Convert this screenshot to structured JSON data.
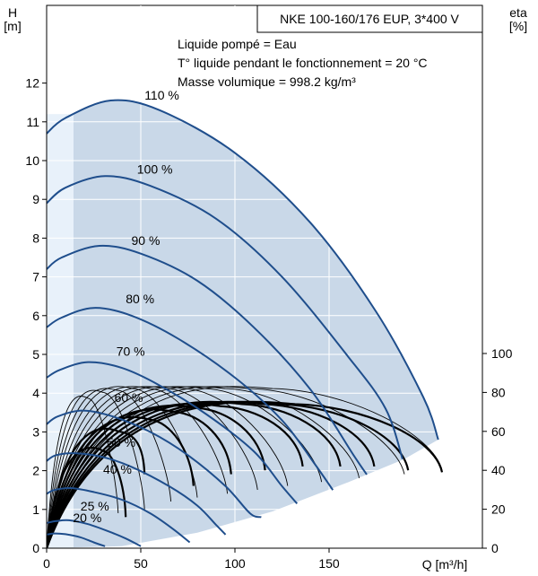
{
  "chart_data": {
    "type": "line",
    "title": "NKE 100-160/176 EUP, 3*400 V",
    "annotations": [
      "Liquide pompé = Eau",
      "T° liquide pendant le fonctionnement = 20 °C",
      "Masse volumique = 998.2 kg/m³"
    ],
    "left_axis": {
      "label_line1": "H",
      "label_line2": "[m]",
      "range": [
        0,
        13
      ],
      "ticks": [
        0,
        1,
        2,
        3,
        4,
        5,
        6,
        7,
        8,
        9,
        10,
        11,
        12
      ]
    },
    "right_axis": {
      "label_line1": "eta",
      "label_line2": "[%]",
      "range": [
        0,
        100
      ],
      "ticks": [
        0,
        20,
        40,
        60,
        80,
        100
      ]
    },
    "x_axis": {
      "label": "Q [m³/h]",
      "range": [
        0,
        230
      ],
      "ticks": [
        0,
        50,
        100,
        150
      ]
    },
    "head_curves": [
      {
        "name": "110 %",
        "points": [
          [
            0,
            10.7
          ],
          [
            10,
            11.1
          ],
          [
            34,
            11.55
          ],
          [
            60,
            11.3
          ],
          [
            100,
            10.2
          ],
          [
            140,
            8.4
          ],
          [
            175,
            6.1
          ],
          [
            200,
            3.9
          ],
          [
            208,
            2.8
          ]
        ]
      },
      {
        "name": "100 %",
        "points": [
          [
            0,
            8.9
          ],
          [
            10,
            9.3
          ],
          [
            31,
            9.6
          ],
          [
            55,
            9.35
          ],
          [
            90,
            8.5
          ],
          [
            125,
            7.0
          ],
          [
            160,
            4.95
          ],
          [
            180,
            3.6
          ],
          [
            189,
            2.3
          ]
        ]
      },
      {
        "name": "90 %",
        "points": [
          [
            0,
            7.2
          ],
          [
            8,
            7.5
          ],
          [
            28,
            7.8
          ],
          [
            50,
            7.6
          ],
          [
            80,
            6.9
          ],
          [
            110,
            5.7
          ],
          [
            140,
            4.1
          ],
          [
            163,
            2.4
          ],
          [
            170,
            1.9
          ]
        ]
      },
      {
        "name": "80 %",
        "points": [
          [
            0,
            5.7
          ],
          [
            8,
            5.95
          ],
          [
            25,
            6.2
          ],
          [
            45,
            6.0
          ],
          [
            70,
            5.4
          ],
          [
            100,
            4.4
          ],
          [
            125,
            3.3
          ],
          [
            142,
            2.2
          ],
          [
            152,
            1.5
          ]
        ]
      },
      {
        "name": "70 %",
        "points": [
          [
            0,
            4.4
          ],
          [
            7,
            4.6
          ],
          [
            22,
            4.8
          ],
          [
            40,
            4.65
          ],
          [
            60,
            4.2
          ],
          [
            85,
            3.45
          ],
          [
            110,
            2.5
          ],
          [
            125,
            1.6
          ],
          [
            133,
            1.15
          ]
        ]
      },
      {
        "name": "60 %",
        "points": [
          [
            0,
            3.2
          ],
          [
            6,
            3.4
          ],
          [
            19,
            3.55
          ],
          [
            35,
            3.4
          ],
          [
            55,
            3.0
          ],
          [
            75,
            2.4
          ],
          [
            95,
            1.6
          ],
          [
            108,
            0.9
          ],
          [
            114,
            0.8
          ]
        ]
      },
      {
        "name": "50 %",
        "points": [
          [
            0,
            2.25
          ],
          [
            5,
            2.4
          ],
          [
            16,
            2.45
          ],
          [
            30,
            2.35
          ],
          [
            45,
            2.1
          ],
          [
            65,
            1.6
          ],
          [
            80,
            1.1
          ],
          [
            90,
            0.6
          ],
          [
            95,
            0.35
          ]
        ]
      },
      {
        "name": "40 %",
        "points": [
          [
            0,
            1.4
          ],
          [
            4,
            1.5
          ],
          [
            13,
            1.55
          ],
          [
            25,
            1.45
          ],
          [
            40,
            1.25
          ],
          [
            55,
            0.9
          ],
          [
            67,
            0.5
          ],
          [
            76,
            0.15
          ]
        ]
      },
      {
        "name": "25 %",
        "points": [
          [
            0,
            0.65
          ],
          [
            5,
            0.7
          ],
          [
            12,
            0.72
          ],
          [
            22,
            0.62
          ],
          [
            32,
            0.45
          ],
          [
            42,
            0.25
          ],
          [
            50,
            0.05
          ]
        ]
      },
      {
        "name": "20 %",
        "points": [
          [
            0,
            0.35
          ],
          [
            4,
            0.38
          ],
          [
            10,
            0.36
          ],
          [
            18,
            0.28
          ],
          [
            25,
            0.15
          ],
          [
            31,
            0.05
          ]
        ]
      }
    ],
    "operating_region_lower_edge": [
      [
        0,
        0
      ],
      [
        40,
        0.05
      ],
      [
        80,
        0.4
      ],
      [
        120,
        0.95
      ],
      [
        160,
        1.7
      ],
      [
        190,
        2.3
      ],
      [
        208,
        2.8
      ]
    ],
    "label_positions_note": "",
    "efficiency_thin_peaks": [
      {
        "q_end": 38,
        "eta_end": 18,
        "q_peak": 22,
        "eta_peak": 77
      },
      {
        "q_end": 52,
        "eta_end": 20,
        "q_peak": 30,
        "eta_peak": 80
      },
      {
        "q_end": 66,
        "eta_end": 24,
        "q_peak": 38,
        "eta_peak": 81
      },
      {
        "q_end": 80,
        "eta_end": 26,
        "q_peak": 46,
        "eta_peak": 82
      },
      {
        "q_end": 96,
        "eta_end": 28,
        "q_peak": 55,
        "eta_peak": 82
      },
      {
        "q_end": 112,
        "eta_end": 30,
        "q_peak": 64,
        "eta_peak": 82
      },
      {
        "q_end": 128,
        "eta_end": 32,
        "q_peak": 73,
        "eta_peak": 82
      },
      {
        "q_end": 146,
        "eta_end": 34,
        "q_peak": 84,
        "eta_peak": 82
      },
      {
        "q_end": 166,
        "eta_end": 36,
        "q_peak": 95,
        "eta_peak": 82
      },
      {
        "q_end": 190,
        "eta_end": 38,
        "q_peak": 108,
        "eta_peak": 82
      },
      {
        "q_end": 210,
        "eta_end": 40,
        "q_peak": 120,
        "eta_peak": 82
      }
    ],
    "efficiency_thick": [
      {
        "q_end": 42,
        "eta_end": 16,
        "q_peak": 30,
        "eta_peak": 50
      },
      {
        "q_end": 52,
        "eta_end": 38,
        "q_peak": 38,
        "eta_peak": 60
      },
      {
        "q_end": 78,
        "eta_end": 32,
        "q_peak": 55,
        "eta_peak": 66
      },
      {
        "q_end": 98,
        "eta_end": 38,
        "q_peak": 68,
        "eta_peak": 70
      },
      {
        "q_end": 116,
        "eta_end": 40,
        "q_peak": 80,
        "eta_peak": 72
      },
      {
        "q_end": 136,
        "eta_end": 42,
        "q_peak": 92,
        "eta_peak": 73
      },
      {
        "q_end": 156,
        "eta_end": 42,
        "q_peak": 104,
        "eta_peak": 74
      },
      {
        "q_end": 174,
        "eta_end": 42,
        "q_peak": 115,
        "eta_peak": 74
      },
      {
        "q_end": 192,
        "eta_end": 40,
        "q_peak": 124,
        "eta_peak": 74
      },
      {
        "q_end": 210,
        "eta_end": 39,
        "q_peak": 132,
        "eta_peak": 74
      }
    ],
    "colors": {
      "head": "#1f4e8c",
      "region": "#c9d8e8",
      "region_light": "#e8f1fa",
      "eta_thin": "#000000",
      "eta_thick": "#000000"
    },
    "grid": true
  }
}
